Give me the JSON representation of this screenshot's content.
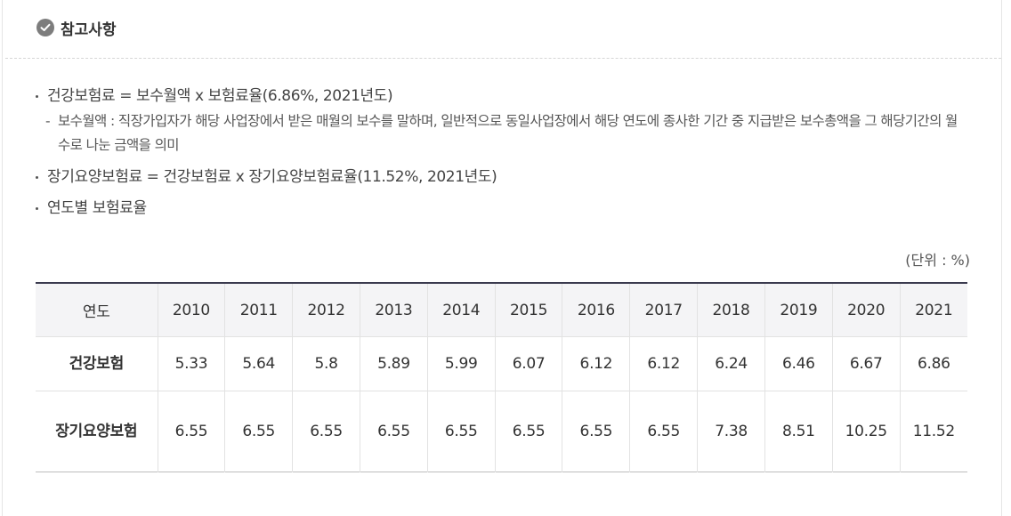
{
  "header": {
    "title": "참고사항"
  },
  "notes": {
    "item1": "건강보험료 = 보수월액 x 보험료율(6.86%, 2021년도)",
    "item1_sub_mark": "-",
    "item1_sub": "보수월액 : 직장가입자가 해당 사업장에서 받은 매월의 보수를 말하며, 일반적으로 동일사업장에서 해당 연도에 종사한 기간 중 지급받은 보수총액을 그 해당기간의 월수로 나눈 금액을 의미",
    "item2": "장기요양보험료 = 건강보험료 x 장기요양보험료율(11.52%, 2021년도)",
    "item3": "연도별 보험료율"
  },
  "unit": "(단위 : %)",
  "table": {
    "header_label": "연도",
    "years": [
      "2010",
      "2011",
      "2012",
      "2013",
      "2014",
      "2015",
      "2016",
      "2017",
      "2018",
      "2019",
      "2020",
      "2021"
    ],
    "rows": [
      {
        "label": "건강보험",
        "values": [
          "5.33",
          "5.64",
          "5.8",
          "5.89",
          "5.99",
          "6.07",
          "6.12",
          "6.12",
          "6.24",
          "6.46",
          "6.67",
          "6.86"
        ]
      },
      {
        "label": "장기요양보험",
        "values": [
          "6.55",
          "6.55",
          "6.55",
          "6.55",
          "6.55",
          "6.55",
          "6.55",
          "6.55",
          "7.38",
          "8.51",
          "10.25",
          "11.52"
        ]
      }
    ]
  },
  "colors": {
    "header_bg": "#f4f4f6",
    "table_top_border": "#3a3a4e",
    "check_icon": "#7d7d7d"
  }
}
